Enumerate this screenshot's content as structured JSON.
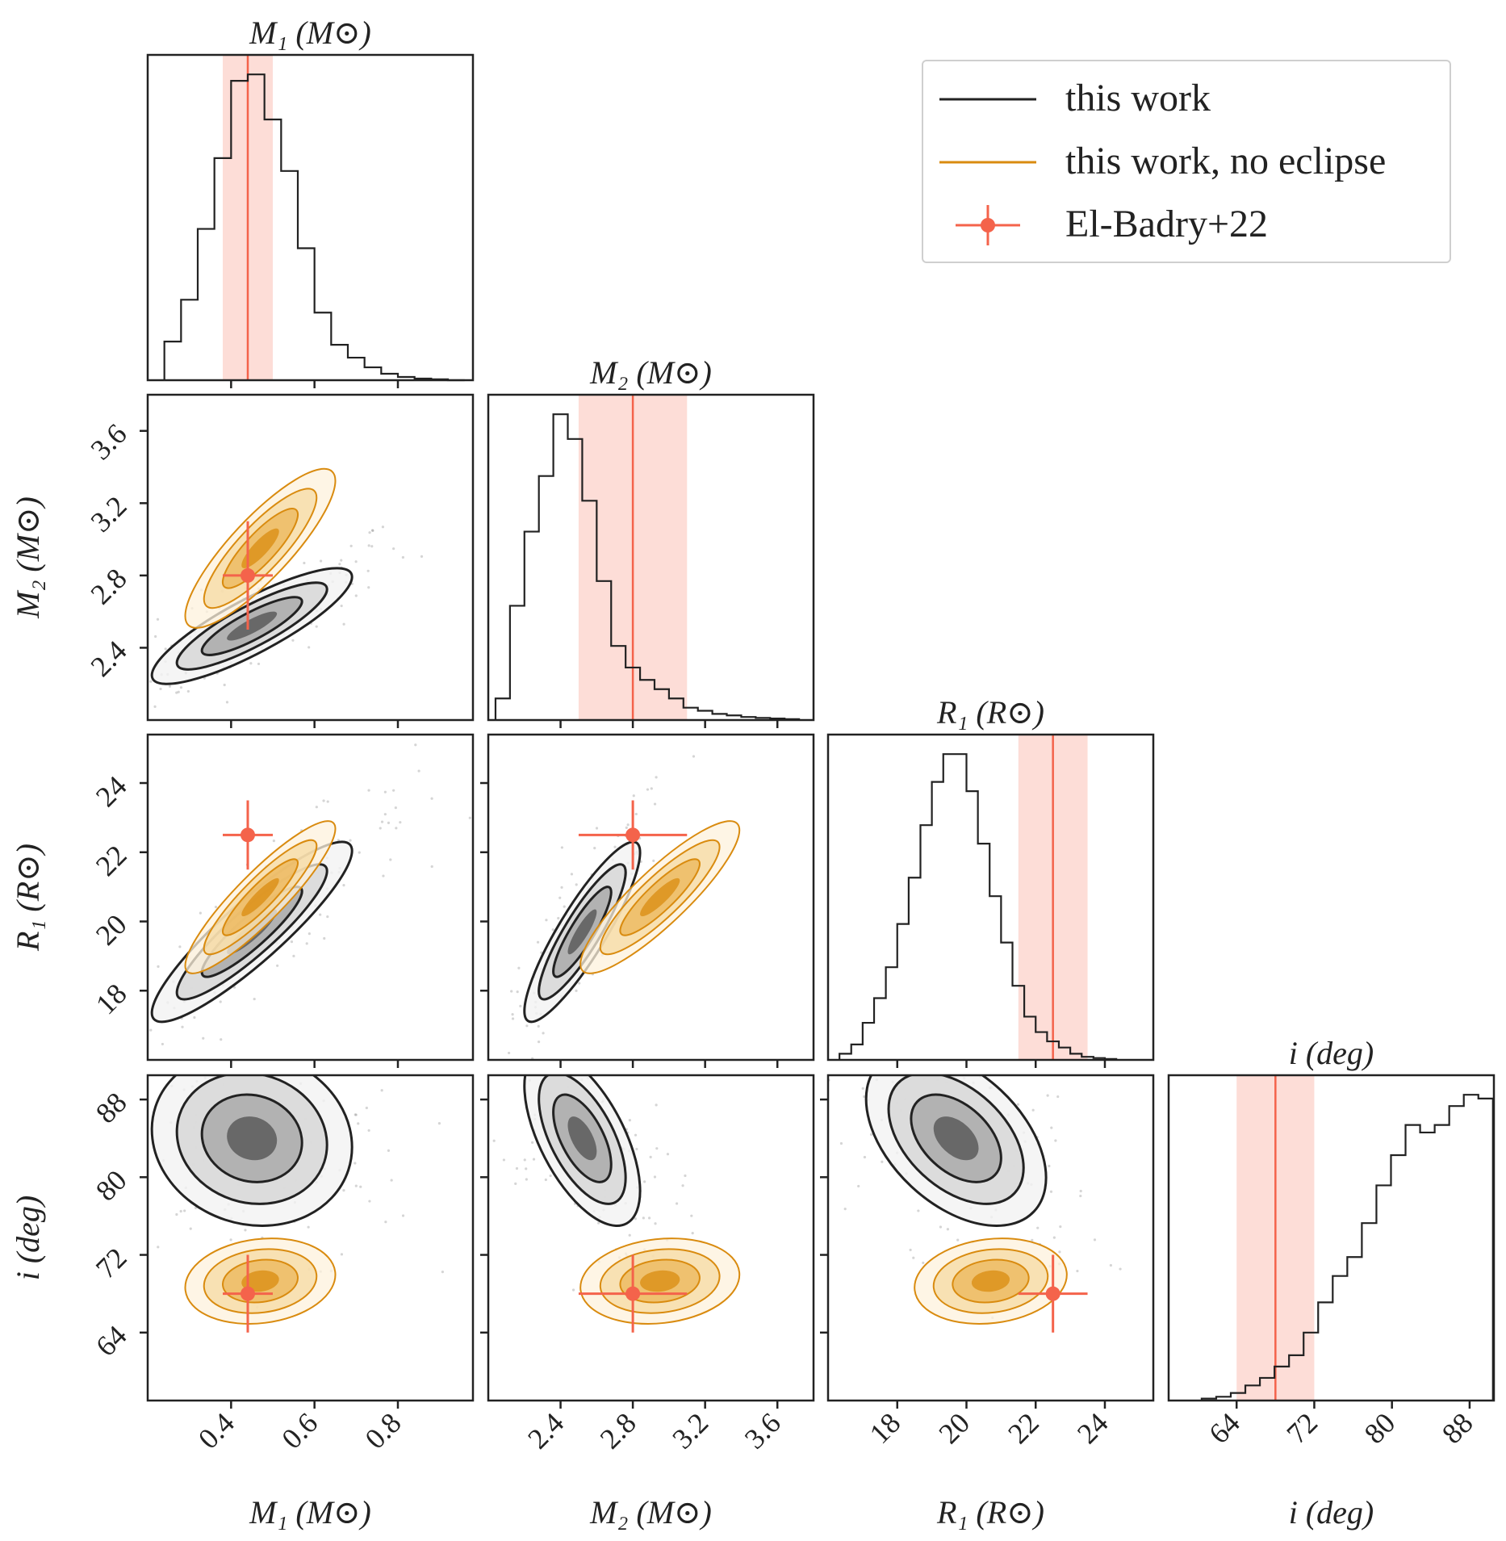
{
  "chart_data": {
    "type": "corner",
    "parameters": [
      {
        "name": "M1",
        "title": "M₁ (M⊙)",
        "label": "M₁ (M⊙)",
        "range": [
          0.2,
          0.98
        ],
        "ticks": [
          0.4,
          0.6,
          0.8
        ],
        "tick_labels": [
          "0.4",
          "0.6",
          "0.8"
        ],
        "reference": 0.44,
        "reference_band": [
          0.38,
          0.5
        ]
      },
      {
        "name": "M2",
        "title": "M₂ (M⊙)",
        "label": "M₂ (M⊙)",
        "range": [
          2.0,
          3.8
        ],
        "ticks": [
          2.4,
          2.8,
          3.2,
          3.6
        ],
        "tick_labels": [
          "2.4",
          "2.8",
          "3.2",
          "3.6"
        ],
        "reference": 2.8,
        "reference_band": [
          2.5,
          3.1
        ]
      },
      {
        "name": "R1",
        "title": "R₁ (R⊙)",
        "label": "R₁ (R⊙)",
        "range": [
          16.0,
          25.4
        ],
        "ticks": [
          18,
          20,
          22,
          24
        ],
        "tick_labels": [
          "18",
          "20",
          "22",
          "24"
        ],
        "reference": 22.5,
        "reference_band": [
          21.5,
          23.5
        ]
      },
      {
        "name": "i",
        "title": "i (deg)",
        "label": "i (deg)",
        "range": [
          57.0,
          90.5
        ],
        "ticks": [
          64,
          72,
          80,
          88
        ],
        "tick_labels": [
          "64",
          "72",
          "80",
          "88"
        ],
        "reference": 68.0,
        "reference_band": [
          64.0,
          72.0
        ]
      }
    ],
    "histograms": [
      {
        "param": "M1",
        "bin_edges": [
          0.24,
          0.28,
          0.32,
          0.36,
          0.4,
          0.44,
          0.48,
          0.52,
          0.56,
          0.6,
          0.64,
          0.68,
          0.72,
          0.76,
          0.8,
          0.84,
          0.88,
          0.92,
          0.96
        ],
        "counts": [
          0.12,
          0.25,
          0.47,
          0.69,
          0.93,
          0.95,
          0.81,
          0.65,
          0.41,
          0.21,
          0.11,
          0.07,
          0.04,
          0.02,
          0.01,
          0.005,
          0.003,
          0.0
        ]
      },
      {
        "param": "M2",
        "bin_edges": [
          2.04,
          2.12,
          2.2,
          2.28,
          2.36,
          2.44,
          2.52,
          2.6,
          2.68,
          2.76,
          2.84,
          2.92,
          3.0,
          3.08,
          3.16,
          3.24,
          3.32,
          3.4,
          3.48,
          3.56,
          3.64,
          3.72
        ],
        "counts": [
          0.07,
          0.37,
          0.61,
          0.79,
          0.99,
          0.91,
          0.71,
          0.45,
          0.24,
          0.17,
          0.13,
          0.1,
          0.07,
          0.04,
          0.03,
          0.02,
          0.015,
          0.01,
          0.007,
          0.005,
          0.003
        ]
      },
      {
        "param": "R1",
        "bin_edges": [
          16.33,
          16.67,
          17.0,
          17.33,
          17.67,
          18.0,
          18.33,
          18.67,
          19.0,
          19.33,
          19.67,
          20.0,
          20.33,
          20.67,
          21.0,
          21.33,
          21.67,
          22.0,
          22.33,
          22.67,
          23.0,
          23.33,
          23.67,
          24.0,
          24.33
        ],
        "counts": [
          0.02,
          0.05,
          0.12,
          0.2,
          0.3,
          0.44,
          0.59,
          0.76,
          0.9,
          0.99,
          0.99,
          0.87,
          0.7,
          0.53,
          0.38,
          0.24,
          0.14,
          0.09,
          0.06,
          0.04,
          0.02,
          0.01,
          0.006,
          0.003
        ]
      },
      {
        "param": "i",
        "bin_edges": [
          60.4,
          61.9,
          63.4,
          64.9,
          66.4,
          67.9,
          69.4,
          70.9,
          72.4,
          73.9,
          75.4,
          76.9,
          78.4,
          79.9,
          81.4,
          82.9,
          84.4,
          85.9,
          87.4,
          88.9,
          90.4
        ],
        "counts": [
          0.005,
          0.01,
          0.02,
          0.04,
          0.06,
          0.09,
          0.12,
          0.18,
          0.26,
          0.33,
          0.38,
          0.47,
          0.57,
          0.65,
          0.73,
          0.71,
          0.73,
          0.78,
          0.81,
          0.8
        ]
      }
    ],
    "series": [
      {
        "name": "this work",
        "color": "#222222",
        "posterior": {
          "M1": [
            0.45,
            0.12
          ],
          "M2": [
            2.52,
            0.16
          ],
          "R1": [
            19.7,
            1.3
          ],
          "i": [
            84.0,
            4.5
          ]
        }
      },
      {
        "name": "this work, no eclipse",
        "color": "#d98b0f",
        "posterior": {
          "M1": [
            0.47,
            0.09
          ],
          "M2": [
            2.95,
            0.22
          ],
          "R1": [
            20.7,
            1.1
          ],
          "i": [
            69.3,
            2.2
          ]
        }
      }
    ],
    "reference_points": [
      {
        "name": "El-Badry+22",
        "color": "#f4634b",
        "values": {
          "M1": 0.44,
          "M2": 2.8,
          "R1": 22.5,
          "i": 68.0
        },
        "errors": {
          "M1": 0.06,
          "M2": 0.3,
          "R1": 1.0,
          "i": 4.0
        }
      }
    ],
    "legend_position": "top-right"
  },
  "legend": {
    "entries": [
      {
        "label": "this work",
        "color": "#222222",
        "kind": "line"
      },
      {
        "label": "this work, no eclipse",
        "color": "#d98b0f",
        "kind": "line"
      },
      {
        "label": "El-Badry+22",
        "color": "#f4634b",
        "kind": "errorbar"
      }
    ]
  }
}
